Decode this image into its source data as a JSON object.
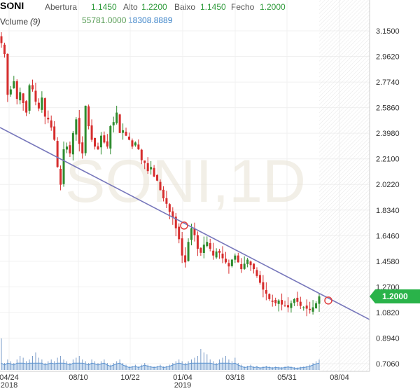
{
  "header": {
    "symbol": "SONI",
    "open_label": "Abertura",
    "open_value": "1.1450",
    "high_label": "Alto",
    "high_value": "1.2200",
    "low_label": "Baixo",
    "low_value": "1.1450",
    "close_label": "Fecho",
    "close_value": "1.2000",
    "indicator_name": "Volume",
    "indicator_param": "(9)",
    "volume_value": "55781.0000",
    "volume_avg_value": "18308.8889"
  },
  "watermark": "SONI,1D",
  "last_price_tag": "1.2000",
  "colors": {
    "up": "#2e8b2e",
    "down": "#d62d2d",
    "trendline": "#7777bb",
    "price_tag": "#2ab34a",
    "volume_fill": "#a9c7e6",
    "volume_line": "#5b93d1"
  },
  "chart_data": {
    "type": "candlestick",
    "title": "",
    "y_ticks": [
      "3.1500",
      "2.9620",
      "2.7740",
      "2.5860",
      "2.3980",
      "2.2100",
      "2.0220",
      "1.8340",
      "1.6460",
      "1.4580",
      "1.2700",
      "1.0820",
      "0.8940",
      "0.7060"
    ],
    "x_ticks": [
      {
        "label": "04/24",
        "sub": "2018"
      },
      {
        "label": "08/10",
        "sub": ""
      },
      {
        "label": "10/22",
        "sub": ""
      },
      {
        "label": "01/04",
        "sub": "2019"
      },
      {
        "label": "03/18",
        "sub": ""
      },
      {
        "label": "05/31",
        "sub": ""
      },
      {
        "label": "08/04",
        "sub": ""
      }
    ],
    "ylim": [
      0.706,
      3.15
    ],
    "last_close": 1.2,
    "trendline": {
      "start_price": 2.44,
      "end_price": 1.03,
      "touch_price_1": 1.72,
      "touch_price_2": 1.17
    },
    "series": [
      {
        "type": "candles",
        "close_path": [
          3.06,
          2.98,
          2.68,
          2.72,
          2.78,
          2.65,
          2.7,
          2.62,
          2.55,
          2.75,
          2.72,
          2.63,
          2.58,
          2.66,
          2.52,
          2.5,
          2.44,
          2.35,
          2.15,
          2.02,
          2.28,
          2.3,
          2.25,
          2.4,
          2.5,
          2.32,
          2.25,
          2.6,
          2.45,
          2.35,
          2.3,
          2.28,
          2.38,
          2.33,
          2.3,
          2.45,
          2.48,
          2.55,
          2.4,
          2.42,
          2.38,
          2.35,
          2.3,
          2.33,
          2.28,
          2.2,
          2.18,
          2.12,
          2.15,
          2.08,
          2.05,
          1.98,
          1.92,
          1.88,
          1.82,
          1.78,
          1.7,
          1.62,
          1.5,
          1.45,
          1.6,
          1.7,
          1.65,
          1.55,
          1.52,
          1.58,
          1.6,
          1.55,
          1.5,
          1.53,
          1.52,
          1.48,
          1.45,
          1.42,
          1.47,
          1.5,
          1.45,
          1.4,
          1.44,
          1.47,
          1.43,
          1.4,
          1.35,
          1.3,
          1.25,
          1.22,
          1.18,
          1.16,
          1.15,
          1.17,
          1.14,
          1.13,
          1.12,
          1.15,
          1.18,
          1.16,
          1.13,
          1.12,
          1.11,
          1.1,
          1.12,
          1.15,
          1.2
        ]
      },
      {
        "type": "volume",
        "values": [
          0.9,
          0.2,
          0.3,
          0.25,
          0.2,
          0.3,
          0.4,
          0.35,
          0.25,
          0.3,
          0.4,
          0.5,
          0.35,
          0.3,
          0.2,
          0.25,
          0.3,
          0.25,
          0.35,
          0.4,
          0.3,
          0.25,
          0.2,
          0.3,
          0.35,
          0.4,
          0.3,
          0.25,
          0.2,
          0.3,
          0.25,
          0.2,
          0.25,
          0.3,
          0.2,
          0.15,
          0.2,
          0.25,
          0.3,
          0.2,
          0.15,
          0.1,
          0.12,
          0.15,
          0.1,
          0.15,
          0.2,
          0.15,
          0.12,
          0.1,
          0.12,
          0.15,
          0.1,
          0.12,
          0.15,
          0.2,
          0.25,
          0.3,
          0.25,
          0.2,
          0.25,
          0.3,
          0.35,
          0.4,
          0.6,
          0.5,
          0.45,
          0.3,
          0.25,
          0.2,
          0.3,
          0.35,
          0.4,
          0.3,
          0.25,
          0.35,
          0.2,
          0.15,
          0.1,
          0.12,
          0.15,
          0.1,
          0.12,
          0.08,
          0.1,
          0.12,
          0.1,
          0.08,
          0.1,
          0.09,
          0.08,
          0.1,
          0.12,
          0.1,
          0.08,
          0.07,
          0.09,
          0.1,
          0.12,
          0.15,
          0.2,
          0.25,
          0.3
        ]
      }
    ]
  }
}
